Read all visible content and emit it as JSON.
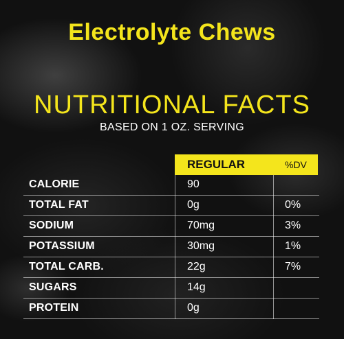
{
  "product_title": "Electrolyte Chews",
  "facts_heading": "NUTRITIONAL FACTS",
  "serving_text": "BASED ON 1 OZ. SERVING",
  "colors": {
    "accent": "#f4e51c",
    "background": "#111111",
    "text": "#ffffff"
  },
  "table": {
    "columns": [
      "REGULAR",
      "%DV"
    ],
    "rows": [
      {
        "label": "CALORIE",
        "regular": "90",
        "dv": ""
      },
      {
        "label": "TOTAL FAT",
        "regular": "0g",
        "dv": "0%"
      },
      {
        "label": "SODIUM",
        "regular": "70mg",
        "dv": "3%"
      },
      {
        "label": "POTASSIUM",
        "regular": "30mg",
        "dv": "1%"
      },
      {
        "label": "TOTAL CARB.",
        "regular": "22g",
        "dv": "7%"
      },
      {
        "label": "SUGARS",
        "regular": "14g",
        "dv": ""
      },
      {
        "label": "PROTEIN",
        "regular": "0g",
        "dv": ""
      }
    ]
  }
}
